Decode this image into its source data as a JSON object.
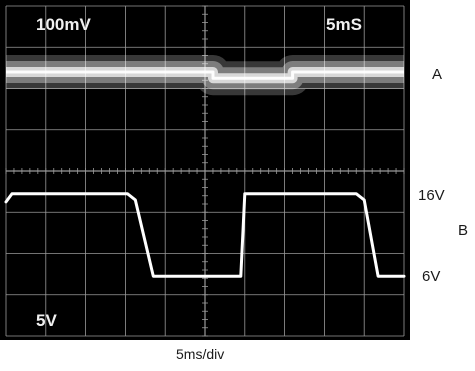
{
  "screen": {
    "top_left": "100mV",
    "top_right": "5mS",
    "bottom_left": "5V"
  },
  "labels": {
    "trace_a": "A",
    "trace_b": "B",
    "high_level": "16V",
    "low_level": "6V",
    "timebase": "5ms/div"
  },
  "colors": {
    "screen_bg": "#000000",
    "trace": "#ffffff",
    "grid": "#9a9a9a"
  },
  "chart_data": {
    "type": "line",
    "grid": true,
    "divisions": {
      "x": 10,
      "y": 8
    },
    "xlim": [
      0,
      10
    ],
    "ylim": [
      0,
      8
    ],
    "series": [
      {
        "name": "A",
        "kind": "noisy-band",
        "points": [
          [
            0,
            6.4
          ],
          [
            5.2,
            6.4
          ],
          [
            5.2,
            6.25
          ],
          [
            7.2,
            6.25
          ],
          [
            7.2,
            6.4
          ],
          [
            10,
            6.4
          ]
        ]
      },
      {
        "name": "B",
        "points": [
          [
            0,
            3.25
          ],
          [
            0.15,
            3.45
          ],
          [
            3.05,
            3.45
          ],
          [
            3.25,
            3.3
          ],
          [
            3.7,
            1.45
          ],
          [
            5.9,
            1.45
          ],
          [
            6.0,
            3.45
          ],
          [
            8.8,
            3.45
          ],
          [
            9.0,
            3.3
          ],
          [
            9.35,
            1.45
          ],
          [
            10,
            1.45
          ]
        ]
      }
    ]
  }
}
